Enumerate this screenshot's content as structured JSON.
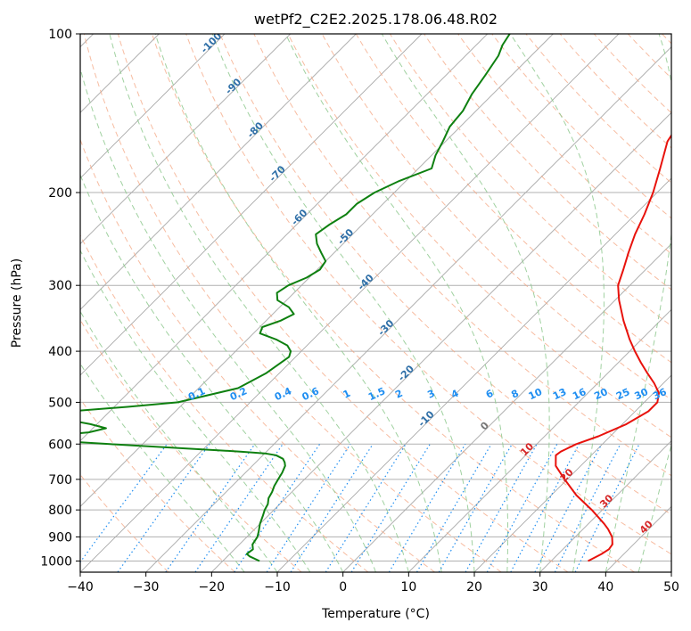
{
  "chart_data": {
    "type": "line",
    "title": "wetPf2_C2E2.2025.178.06.48.R02",
    "xlabel": "Temperature (°C)",
    "ylabel": "Pressure (hPa)",
    "xlim": [
      -40,
      50
    ],
    "ylim": [
      1050,
      100
    ],
    "y_scale": "log",
    "grid": true,
    "x_ticks": [
      -40,
      -30,
      -20,
      -10,
      0,
      10,
      20,
      30,
      40,
      50
    ],
    "y_ticks": [
      100,
      200,
      300,
      400,
      500,
      600,
      700,
      800,
      900,
      1000
    ],
    "series": [
      {
        "color": "#e8120c",
        "pressure": [
          1000,
          970,
          950,
          930,
          900,
          870,
          850,
          800,
          750,
          700,
          660,
          630,
          620,
          600,
          580,
          550,
          520,
          500,
          480,
          460,
          440,
          420,
          400,
          380,
          350,
          320,
          300,
          280,
          260,
          240,
          220,
          200,
          180,
          160,
          150,
          140,
          130,
          120,
          110,
          105,
          100
        ],
        "temperature": [
          35.6,
          36.6,
          37.0,
          36.8,
          35.6,
          33.8,
          32.4,
          28.4,
          23.8,
          19.6,
          16.2,
          14.6,
          14.8,
          16.0,
          18.2,
          20.6,
          22.0,
          22.0,
          20.8,
          18.6,
          16.0,
          13.4,
          10.8,
          8.2,
          4.4,
          0.6,
          -1.8,
          -3.4,
          -5.2,
          -7.0,
          -8.6,
          -10.6,
          -13.2,
          -16.2,
          -17.0,
          -18.4,
          -19.6,
          -20.8,
          -22.2,
          -23.2,
          -24.4
        ]
      },
      {
        "color": "#0e8010",
        "pressure": [
          1000,
          980,
          970,
          950,
          930,
          900,
          880,
          850,
          820,
          800,
          780,
          760,
          740,
          720,
          700,
          680,
          660,
          650,
          640,
          630,
          625,
          620,
          600,
          590,
          585,
          580,
          570,
          560,
          550,
          540,
          530,
          520,
          510,
          500,
          470,
          440,
          410,
          400,
          390,
          380,
          370,
          360,
          350,
          340,
          330,
          320,
          310,
          300,
          290,
          280,
          270,
          260,
          250,
          240,
          230,
          220,
          210,
          200,
          190,
          180,
          170,
          160,
          150,
          140,
          130,
          120,
          110,
          105,
          100
        ],
        "temperature": [
          -14.4,
          -16.6,
          -17.4,
          -17.2,
          -18.0,
          -18.4,
          -19.0,
          -20.0,
          -20.8,
          -21.4,
          -21.8,
          -22.6,
          -23.0,
          -23.6,
          -24.0,
          -24.4,
          -25.0,
          -25.6,
          -26.4,
          -28.0,
          -30.0,
          -34.0,
          -55.0,
          -65.0,
          -67.0,
          -66.0,
          -60.0,
          -58.0,
          -61.0,
          -65.0,
          -70.0,
          -66.0,
          -58.0,
          -51.0,
          -44.0,
          -42.0,
          -41.0,
          -41.6,
          -43.0,
          -45.6,
          -49.0,
          -49.6,
          -47.8,
          -46.8,
          -48.6,
          -51.4,
          -52.6,
          -52.0,
          -50.4,
          -49.6,
          -50.0,
          -52.0,
          -54.0,
          -55.6,
          -55.0,
          -54.0,
          -54.0,
          -53.0,
          -51.0,
          -48.0,
          -49.4,
          -50.4,
          -51.6,
          -52.0,
          -53.2,
          -54.0,
          -55.0,
          -56.0,
          -56.6
        ]
      }
    ],
    "isotherm_labels": [
      "-100",
      "-90",
      "-80",
      "-70",
      "-60",
      "-50",
      "-40",
      "-30",
      "-20",
      "-10",
      "0",
      "10",
      "20",
      "30",
      "40"
    ],
    "mixing_ratio_labels": [
      "0.1",
      "0.2",
      "0.4",
      "0.6",
      "1",
      "1.5",
      "2",
      "3",
      "4",
      "6",
      "8",
      "10",
      "13",
      "16",
      "20",
      "25",
      "30",
      "36"
    ],
    "mixing_ratio_values": [
      0.1,
      0.2,
      0.4,
      0.6,
      1,
      1.5,
      2,
      3,
      4,
      6,
      8,
      10,
      13,
      16,
      20,
      25,
      30,
      36
    ],
    "colors": {
      "isotherm": "#3070a8",
      "isotherm_warm": "#d62728",
      "isotherm_zero": "#777777",
      "dry_adiabat": "#f4a582",
      "moist_adiabat": "#8fc98f",
      "mixing_ratio": "#1f8ef1",
      "frame_skew": "#d8cfc0"
    }
  }
}
